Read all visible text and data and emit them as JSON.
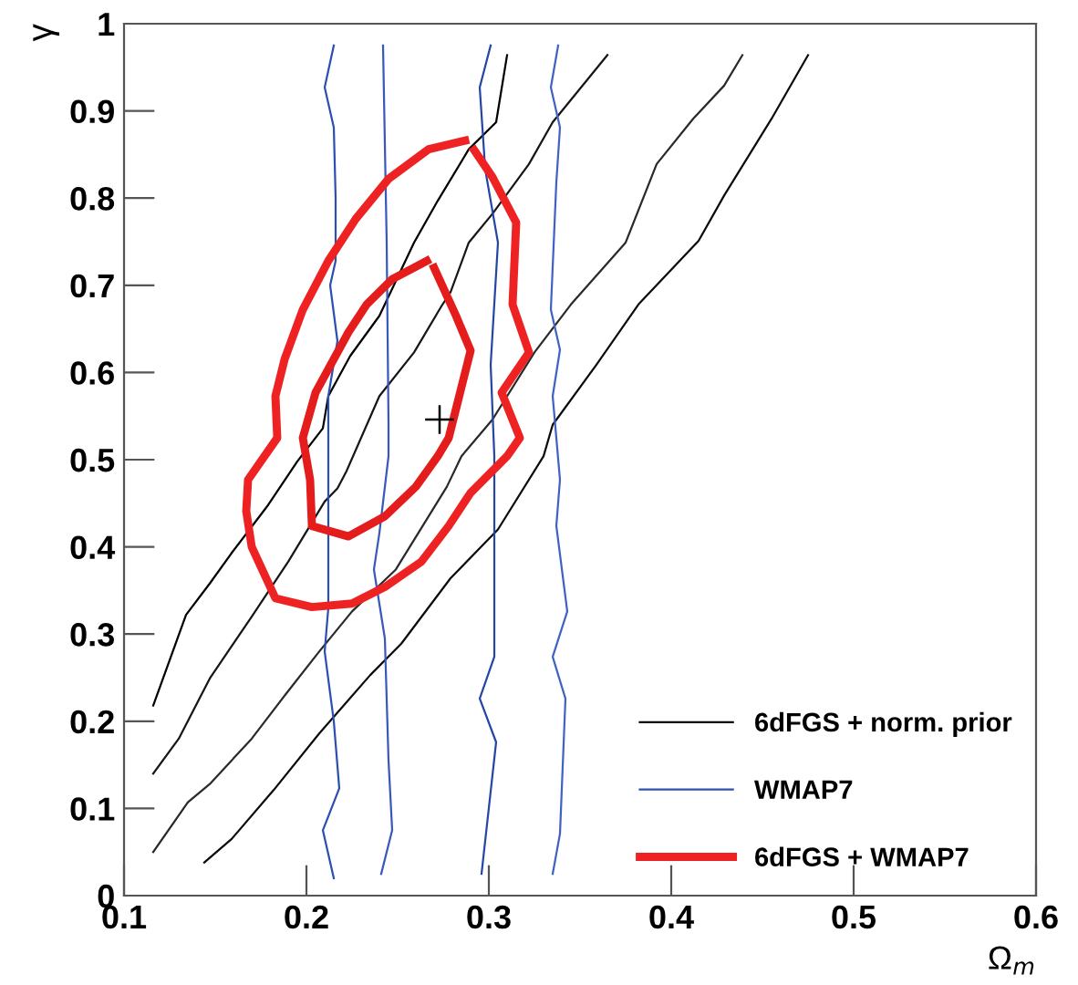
{
  "chart_data": {
    "type": "line",
    "xlabel": "Ω$_{m}$",
    "ylabel": "γ",
    "xlim": [
      0.1,
      0.6
    ],
    "ylim": [
      0,
      1
    ],
    "xticks": [
      0.1,
      0.2,
      0.3,
      0.4,
      0.5,
      0.6
    ],
    "yticks": [
      0,
      0.1,
      0.2,
      0.3,
      0.4,
      0.5,
      0.6,
      0.7,
      0.8,
      0.9,
      1
    ],
    "grid": false,
    "legend": "bottom right",
    "series": [
      {
        "name": "6dFGS + norm. prior",
        "color": "#000000",
        "x": [
          0.116,
          0.134,
          0.147,
          0.159,
          0.179,
          0.195,
          0.209,
          0.212,
          0.224,
          0.24,
          0.259,
          0.272,
          0.289,
          0.304,
          0.31
        ],
        "values": [
          0.218,
          0.322,
          0.358,
          0.393,
          0.448,
          0.498,
          0.536,
          0.573,
          0.619,
          0.665,
          0.749,
          0.797,
          0.856,
          0.887,
          0.964
        ]
      },
      {
        "color": "#161616",
        "x": [
          0.116,
          0.13,
          0.147,
          0.17,
          0.19,
          0.21,
          0.217,
          0.222,
          0.24,
          0.259,
          0.274,
          0.279,
          0.289,
          0.302,
          0.322,
          0.335,
          0.365
        ],
        "values": [
          0.14,
          0.18,
          0.249,
          0.32,
          0.383,
          0.452,
          0.467,
          0.487,
          0.573,
          0.623,
          0.676,
          0.692,
          0.749,
          0.782,
          0.839,
          0.887,
          0.964
        ]
      },
      {
        "color": "#2a2a2a",
        "x": [
          0.116,
          0.135,
          0.147,
          0.17,
          0.189,
          0.207,
          0.225,
          0.249,
          0.277,
          0.285,
          0.302,
          0.325,
          0.345,
          0.375,
          0.392,
          0.412,
          0.429,
          0.439
        ],
        "values": [
          0.05,
          0.107,
          0.128,
          0.18,
          0.232,
          0.28,
          0.326,
          0.374,
          0.469,
          0.504,
          0.546,
          0.623,
          0.678,
          0.749,
          0.839,
          0.891,
          0.929,
          0.964
        ]
      },
      {
        "color": "#0c0c0c",
        "x": [
          0.144,
          0.159,
          0.182,
          0.207,
          0.235,
          0.252,
          0.279,
          0.305,
          0.33,
          0.335,
          0.359,
          0.382,
          0.415,
          0.429,
          0.455,
          0.475
        ],
        "values": [
          0.038,
          0.065,
          0.121,
          0.186,
          0.253,
          0.289,
          0.364,
          0.42,
          0.504,
          0.54,
          0.609,
          0.678,
          0.751,
          0.803,
          0.891,
          0.964
        ]
      },
      {
        "name": "WMAP7",
        "color": "#2c4fb0",
        "x": [
          0.215,
          0.209,
          0.218,
          0.215,
          0.21,
          0.212,
          0.212,
          0.212,
          0.212,
          0.217,
          0.213,
          0.216,
          0.216,
          0.215,
          0.21,
          0.215
        ],
        "values": [
          0.02,
          0.075,
          0.123,
          0.2,
          0.28,
          0.33,
          0.42,
          0.5,
          0.573,
          0.636,
          0.7,
          0.728,
          0.8,
          0.881,
          0.927,
          0.975
        ]
      },
      {
        "color": "#3858bc",
        "x": [
          0.241,
          0.247,
          0.245,
          0.243,
          0.237,
          0.24,
          0.245,
          0.245,
          0.244,
          0.242
        ],
        "values": [
          0.025,
          0.075,
          0.155,
          0.295,
          0.374,
          0.416,
          0.504,
          0.54,
          0.749,
          0.975
        ]
      },
      {
        "color": "#2446a4",
        "x": [
          0.296,
          0.304,
          0.295,
          0.303,
          0.303,
          0.301,
          0.305,
          0.298,
          0.295,
          0.301
        ],
        "values": [
          0.025,
          0.176,
          0.226,
          0.274,
          0.504,
          0.609,
          0.749,
          0.833,
          0.927,
          0.975
        ]
      },
      {
        "color": "#4062c4",
        "x": [
          0.335,
          0.339,
          0.342,
          0.335,
          0.343,
          0.337,
          0.339,
          0.335,
          0.339,
          0.334,
          0.337,
          0.339,
          0.334,
          0.338
        ],
        "values": [
          0.025,
          0.071,
          0.226,
          0.274,
          0.326,
          0.424,
          0.477,
          0.573,
          0.626,
          0.672,
          0.818,
          0.881,
          0.927,
          0.975
        ]
      },
      {
        "name": "6dFGS + WMAP7",
        "color": "#ee2222",
        "x": [
          0.287,
          0.267,
          0.245,
          0.227,
          0.212,
          0.198,
          0.188,
          0.183,
          0.184,
          0.168,
          0.167,
          0.17,
          0.183,
          0.203,
          0.225,
          0.243,
          0.263,
          0.278,
          0.29,
          0.31,
          0.317,
          0.307,
          0.322,
          0.313,
          0.315,
          0.302,
          0.292
        ],
        "values": [
          0.866,
          0.856,
          0.822,
          0.776,
          0.728,
          0.672,
          0.615,
          0.573,
          0.525,
          0.477,
          0.441,
          0.4,
          0.341,
          0.331,
          0.335,
          0.354,
          0.383,
          0.424,
          0.462,
          0.504,
          0.525,
          0.577,
          0.623,
          0.678,
          0.772,
          0.824,
          0.855
        ]
      },
      {
        "color": "#e41c1c",
        "x": [
          0.266,
          0.247,
          0.233,
          0.223,
          0.205,
          0.198,
          0.202,
          0.203,
          0.223,
          0.243,
          0.26,
          0.272,
          0.278,
          0.29,
          0.282,
          0.27
        ],
        "values": [
          0.728,
          0.707,
          0.678,
          0.646,
          0.577,
          0.525,
          0.477,
          0.424,
          0.412,
          0.435,
          0.469,
          0.504,
          0.525,
          0.625,
          0.665,
          0.72
        ]
      },
      {
        "type": "scatter",
        "marker": "cross",
        "color": "#000000",
        "x": [
          0.273
        ],
        "values": [
          0.546
        ]
      }
    ]
  }
}
